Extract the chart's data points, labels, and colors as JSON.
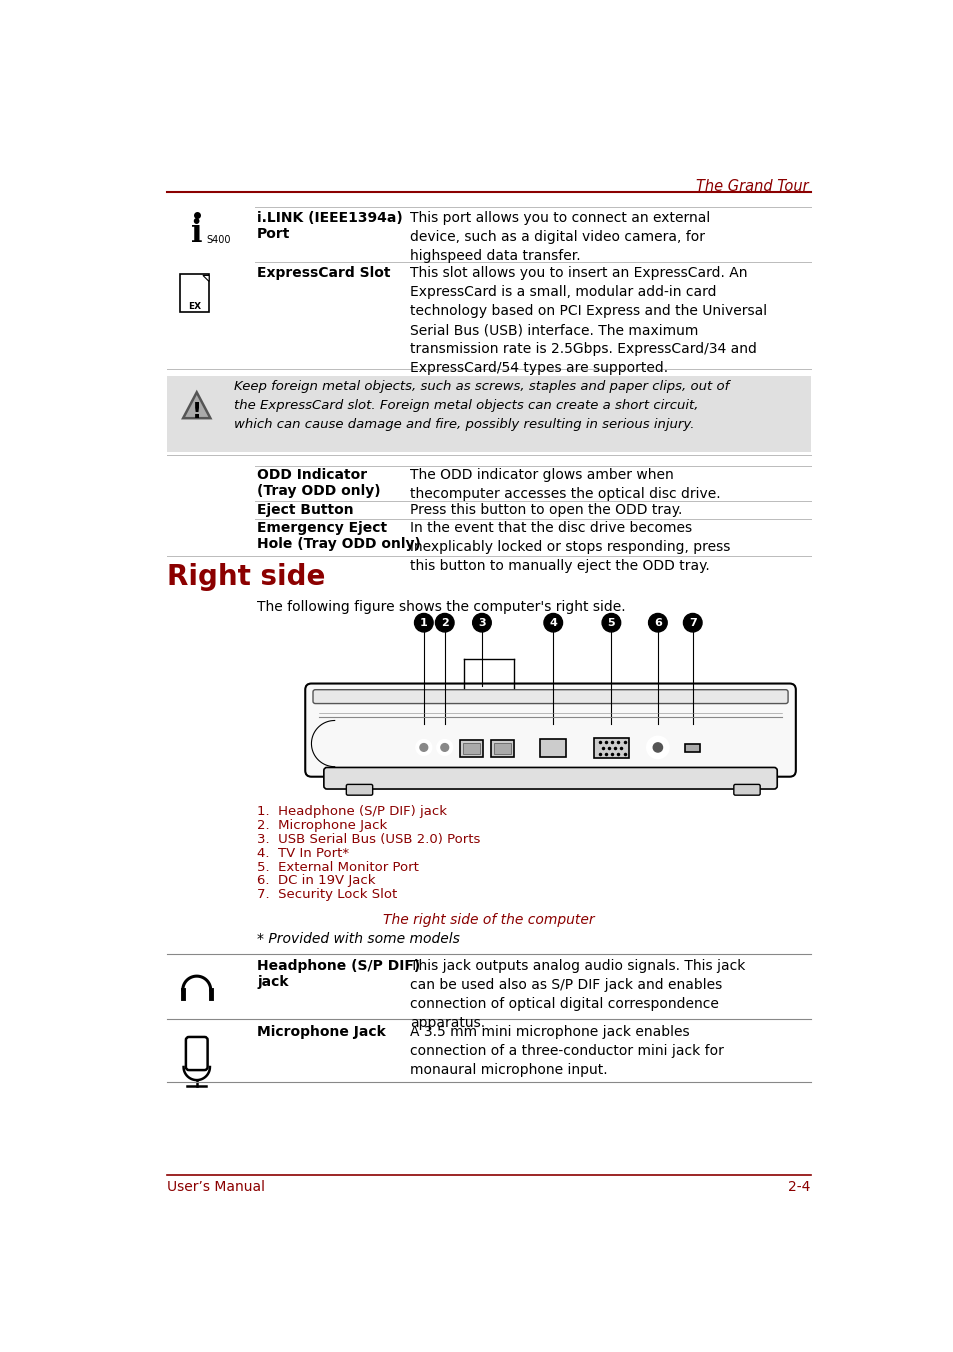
{
  "header_text": "The Grand Tour",
  "header_color": "#8B0000",
  "page_bg": "#ffffff",
  "dark_red": "#8B0000",
  "footer_left": "User’s Manual",
  "footer_right": "2-4",
  "section_title": "Right side",
  "section_subtitle": "The following figure shows the computer's right side.",
  "figure_caption": "The right side of the computer",
  "provided_note": "* Provided with some models",
  "row1_label": "i.LINK (IEEE1394a)\nPort",
  "row1_desc": "This port allows you to connect an external\ndevice, such as a digital video camera, for\nhighspeed data transfer.",
  "row2_label": "ExpressCard Slot",
  "row2_desc": "This slot allows you to insert an ExpressCard. An\nExpressCard is a small, modular add-in card\ntechnology based on PCI Express and the Universal\nSerial Bus (USB) interface. The maximum\ntransmission rate is 2.5Gbps. ExpressCard/34 and\nExpressCard/54 types are supported.",
  "warning_text": "Keep foreign metal objects, such as screws, staples and paper clips, out of\nthe ExpressCard slot. Foreign metal objects can create a short circuit,\nwhich can cause damage and fire, possibly resulting in serious injury.",
  "warning_bg": "#e0e0e0",
  "odd_label": "ODD Indicator\n(Tray ODD only)",
  "odd_desc": "The ODD indicator glows amber when\nthecomputer accesses the optical disc drive.",
  "eject_label": "Eject Button",
  "eject_desc": "Press this button to open the ODD tray.",
  "emergency_label": "Emergency Eject\nHole (Tray ODD only)",
  "emergency_desc": "In the event that the disc drive becomes\ninexplicably locked or stops responding, press\nthis button to manually eject the ODD tray.",
  "list_items": [
    "1.  Headphone (S/P DIF) jack",
    "2.  Microphone Jack",
    "3.  USB Serial Bus (USB 2.0) Ports",
    "4.  TV In Port*",
    "5.  External Monitor Port",
    "6.  DC in 19V Jack",
    "7.  Security Lock Slot"
  ],
  "hp_label": "Headphone (S/P DIF)\njack",
  "hp_desc": "This jack outputs analog audio signals. This jack\ncan be used also as S/P DIF jack and enables\nconnection of optical digital correspondence\napparatus.",
  "mic_label": "Microphone Jack",
  "mic_desc": "A 3.5 mm mini microphone jack enables\nconnection of a three-conductor mini jack for\nmonaural microphone input."
}
